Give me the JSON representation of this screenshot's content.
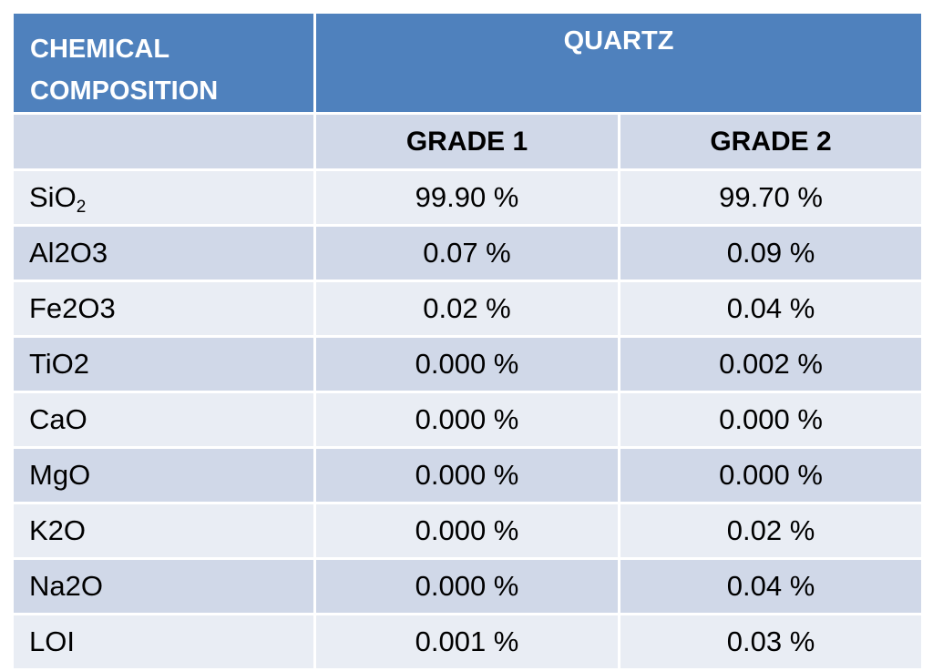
{
  "header": {
    "left_line1": "CHEMICAL",
    "left_line2": "COMPOSITION",
    "group": "QUARTZ"
  },
  "grades": [
    "GRADE 1",
    "GRADE 2"
  ],
  "rows": [
    {
      "base": "SiO",
      "sub": "2",
      "g1": "99.90 %",
      "g2": "99.70 %"
    },
    {
      "base": "Al2O3",
      "sub": "",
      "g1": "0.07 %",
      "g2": "0.09 %"
    },
    {
      "base": "Fe2O3",
      "sub": "",
      "g1": "0.02 %",
      "g2": "0.04 %"
    },
    {
      "base": "TiO2",
      "sub": "",
      "g1": "0.000 %",
      "g2": "0.002 %"
    },
    {
      "base": "CaO",
      "sub": "",
      "g1": "0.000 %",
      "g2": "0.000 %"
    },
    {
      "base": "MgO",
      "sub": "",
      "g1": "0.000 %",
      "g2": "0.000 %"
    },
    {
      "base": "K2O",
      "sub": "",
      "g1": "0.000 %",
      "g2": "0.02 %"
    },
    {
      "base": "Na2O",
      "sub": "",
      "g1": "0.000 %",
      "g2": "0.04 %"
    },
    {
      "base": "LOI",
      "sub": "",
      "g1": "0.001 %",
      "g2": "0.03 %"
    }
  ],
  "colors": {
    "header_bg": "#4f81bd",
    "row_dark": "#d0d8e8",
    "row_light": "#e9edf4"
  }
}
